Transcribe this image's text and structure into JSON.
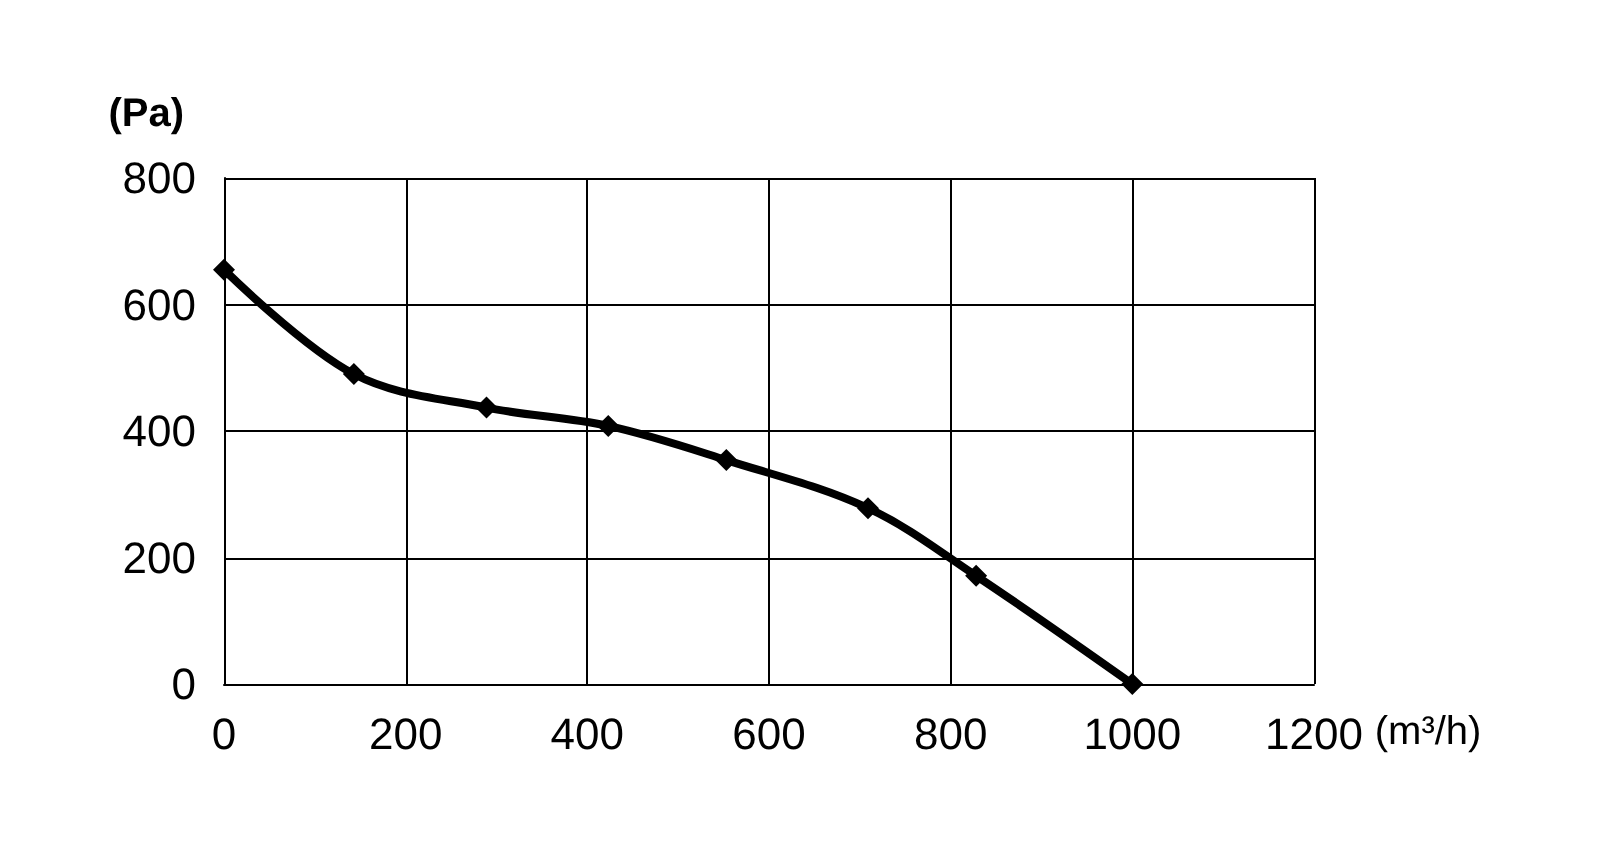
{
  "chart_data": {
    "type": "line",
    "xlabel": "(m³/h)",
    "ylabel": "(Pa)",
    "x": [
      0,
      143,
      289,
      423,
      553,
      709,
      828,
      1000
    ],
    "series": [
      {
        "color": "#000000",
        "values": [
          655,
          490,
          437,
          408,
          354,
          278,
          171,
          0
        ]
      }
    ],
    "xlim": [
      0,
      1200
    ],
    "xticks": [
      0,
      200,
      400,
      600,
      800,
      1000,
      1200
    ],
    "ylim": [
      0,
      800
    ],
    "yticks": [
      0,
      200,
      400,
      600,
      800
    ],
    "grid": true,
    "marker": "diamond",
    "line_style": "solid"
  }
}
